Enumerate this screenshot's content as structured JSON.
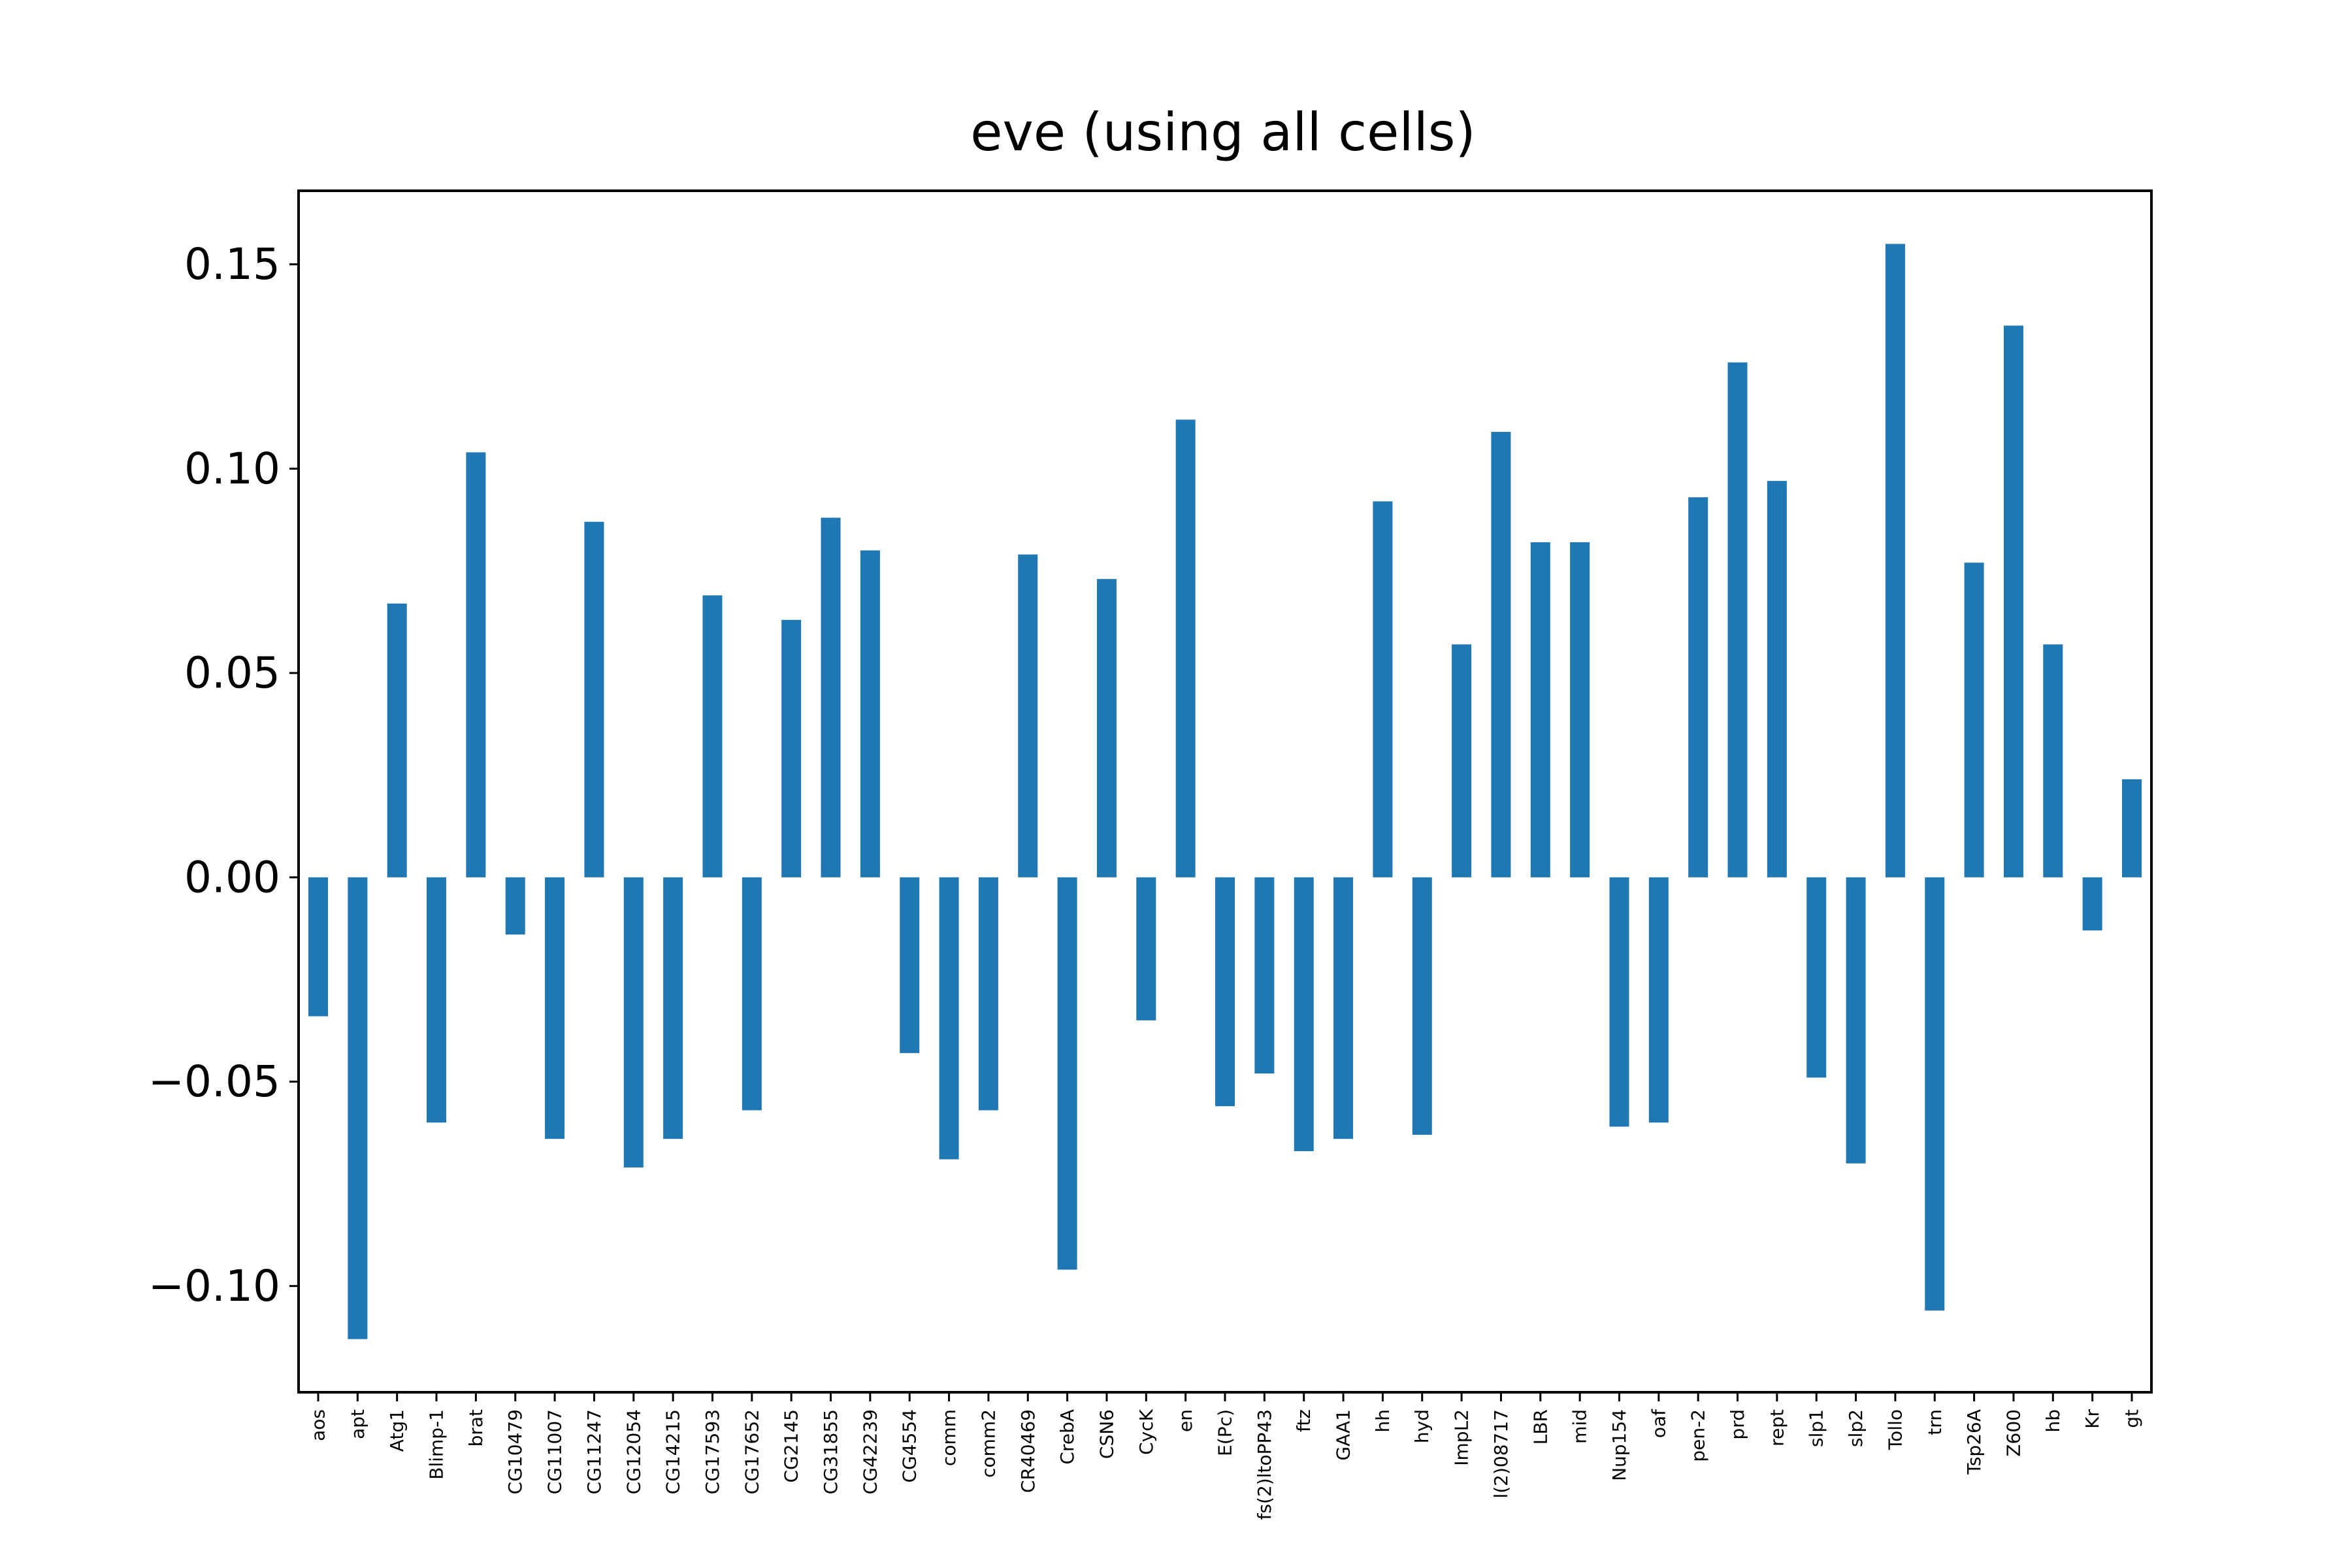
{
  "chart_data": {
    "type": "bar",
    "title": "eve (using all cells)",
    "xlabel": "",
    "ylabel": "",
    "ylim": [
      -0.126,
      0.168
    ],
    "yticks": [
      -0.1,
      -0.05,
      0.0,
      0.05,
      0.1,
      0.15
    ],
    "ytick_labels": [
      "−0.10",
      "−0.05",
      "0.00",
      "0.05",
      "0.10",
      "0.15"
    ],
    "bar_color": "#1f77b4",
    "grid": false,
    "categories": [
      "aos",
      "apt",
      "Atg1",
      "Blimp-1",
      "brat",
      "CG10479",
      "CG11007",
      "CG11247",
      "CG12054",
      "CG14215",
      "CG17593",
      "CG17652",
      "CG2145",
      "CG31855",
      "CG42239",
      "CG4554",
      "comm",
      "comm2",
      "CR40469",
      "CrebA",
      "CSN6",
      "CycK",
      "en",
      "E(Pc)",
      "fs(2)ltoPP43",
      "ftz",
      "GAA1",
      "hh",
      "hyd",
      "ImpL2",
      "l(2)08717",
      "LBR",
      "mid",
      "Nup154",
      "oaf",
      "pen-2",
      "prd",
      "rept",
      "slp1",
      "slp2",
      "Tollo",
      "trn",
      "Tsp26A",
      "Z600",
      "hb",
      "Kr",
      "gt"
    ],
    "values": [
      -0.034,
      -0.113,
      0.067,
      -0.06,
      0.104,
      -0.014,
      -0.064,
      0.087,
      -0.071,
      -0.064,
      0.069,
      -0.057,
      0.063,
      0.088,
      0.08,
      -0.043,
      -0.069,
      -0.057,
      0.079,
      -0.096,
      0.073,
      -0.035,
      0.112,
      -0.056,
      -0.048,
      -0.067,
      -0.064,
      0.092,
      -0.063,
      0.057,
      0.109,
      0.082,
      0.082,
      -0.061,
      -0.06,
      0.093,
      0.126,
      0.097,
      -0.049,
      -0.07,
      0.155,
      -0.106,
      0.077,
      0.135,
      0.057,
      -0.013,
      0.024
    ]
  }
}
